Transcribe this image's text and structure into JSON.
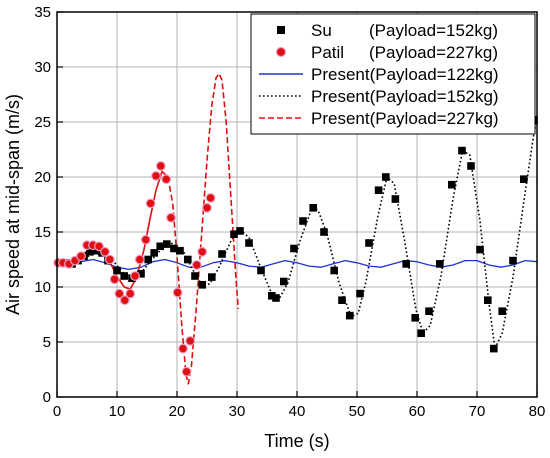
{
  "chart_data": {
    "type": "scatter",
    "xlabel": "Time (s)",
    "ylabel": "Air speed at mid-span (m/s)",
    "xlim": [
      0,
      80
    ],
    "ylim": [
      0,
      35
    ],
    "x_ticks": [
      0,
      10,
      20,
      30,
      40,
      50,
      60,
      70,
      80
    ],
    "y_ticks": [
      0,
      5,
      10,
      15,
      20,
      25,
      30,
      35
    ],
    "grid": true,
    "legend_position": "top-right",
    "legend": [
      {
        "label": "Su",
        "payload": "(Payload=152kg)",
        "style": "square-marker",
        "color": "#000000"
      },
      {
        "label": "Patil",
        "payload": "(Payload=227kg)",
        "style": "circle-marker",
        "color": "#dd1111"
      },
      {
        "label": "Present(Payload=122kg)",
        "payload": "",
        "style": "solid-line",
        "color": "#2233cc"
      },
      {
        "label": "Present(Payload=152kg)",
        "payload": "",
        "style": "dotted-line",
        "color": "#000000"
      },
      {
        "label": "Present(Payload=227kg)",
        "payload": "",
        "style": "dashed-line",
        "color": "#dd1111"
      }
    ],
    "series": [
      {
        "name": "Su",
        "kind": "markers",
        "marker": "square",
        "color": "#000000",
        "points": [
          [
            0.5,
            12.2
          ],
          [
            1.5,
            12.2
          ],
          [
            2.5,
            12.1
          ],
          [
            3.5,
            12.4
          ],
          [
            4.5,
            12.8
          ],
          [
            5.5,
            13.2
          ],
          [
            6.5,
            13.3
          ],
          [
            7.5,
            13.1
          ],
          [
            8.5,
            12.4
          ],
          [
            10.0,
            11.5
          ],
          [
            11.2,
            11.0
          ],
          [
            12.5,
            10.8
          ],
          [
            14.0,
            11.2
          ],
          [
            15.2,
            12.5
          ],
          [
            16.2,
            13.1
          ],
          [
            17.2,
            13.7
          ],
          [
            18.3,
            13.9
          ],
          [
            19.5,
            13.5
          ],
          [
            20.5,
            13.3
          ],
          [
            21.8,
            12.5
          ],
          [
            23.0,
            11.0
          ],
          [
            24.2,
            10.2
          ],
          [
            25.8,
            10.9
          ],
          [
            27.5,
            13.0
          ],
          [
            29.5,
            14.8
          ],
          [
            30.5,
            15.1
          ],
          [
            32.0,
            14.0
          ],
          [
            34.0,
            11.5
          ],
          [
            35.8,
            9.2
          ],
          [
            36.5,
            9.0
          ],
          [
            37.8,
            10.5
          ],
          [
            39.5,
            13.5
          ],
          [
            41.0,
            16.0
          ],
          [
            42.7,
            17.2
          ],
          [
            44.5,
            15.0
          ],
          [
            46.2,
            11.5
          ],
          [
            47.5,
            8.8
          ],
          [
            48.8,
            7.4
          ],
          [
            50.5,
            9.4
          ],
          [
            52.0,
            14.0
          ],
          [
            53.6,
            18.8
          ],
          [
            54.8,
            20.0
          ],
          [
            56.4,
            18.0
          ],
          [
            58.2,
            12.1
          ],
          [
            59.7,
            7.2
          ],
          [
            60.7,
            5.8
          ],
          [
            62.0,
            7.8
          ],
          [
            63.8,
            12.1
          ],
          [
            65.8,
            19.3
          ],
          [
            67.5,
            22.4
          ],
          [
            69.0,
            21.0
          ],
          [
            70.5,
            13.4
          ],
          [
            71.8,
            8.8
          ],
          [
            72.8,
            4.4
          ],
          [
            74.2,
            7.8
          ],
          [
            76.0,
            12.4
          ],
          [
            77.8,
            19.8
          ],
          [
            79.5,
            25.2
          ]
        ]
      },
      {
        "name": "Patil",
        "kind": "markers",
        "marker": "circle",
        "color": "#dd1111",
        "points": [
          [
            0.2,
            12.2
          ],
          [
            1.0,
            12.2
          ],
          [
            2.0,
            12.1
          ],
          [
            3.0,
            12.4
          ],
          [
            4.0,
            12.8
          ],
          [
            5.0,
            13.8
          ],
          [
            6.0,
            13.8
          ],
          [
            7.0,
            13.7
          ],
          [
            8.0,
            13.2
          ],
          [
            8.8,
            12.5
          ],
          [
            9.6,
            10.7
          ],
          [
            10.4,
            9.4
          ],
          [
            11.3,
            8.8
          ],
          [
            12.2,
            9.4
          ],
          [
            13.0,
            11.0
          ],
          [
            13.8,
            12.5
          ],
          [
            14.8,
            14.3
          ],
          [
            15.6,
            17.6
          ],
          [
            16.5,
            20.1
          ],
          [
            17.3,
            21.0
          ],
          [
            18.2,
            19.8
          ],
          [
            19.0,
            16.3
          ],
          [
            20.1,
            9.5
          ],
          [
            21.0,
            4.4
          ],
          [
            21.6,
            2.3
          ],
          [
            22.2,
            5.1
          ],
          [
            23.3,
            12.0
          ],
          [
            24.2,
            13.2
          ],
          [
            25.0,
            17.2
          ],
          [
            25.6,
            18.1
          ]
        ]
      },
      {
        "name": "Present(Payload=122kg)",
        "kind": "line",
        "style": "solid",
        "color": "#2233cc",
        "points": [
          [
            0,
            12.0
          ],
          [
            2,
            12.1
          ],
          [
            4,
            12.3
          ],
          [
            6,
            12.5
          ],
          [
            8,
            12.2
          ],
          [
            10,
            11.8
          ],
          [
            12,
            11.6
          ],
          [
            14,
            11.8
          ],
          [
            16,
            12.3
          ],
          [
            18,
            12.5
          ],
          [
            20,
            12.2
          ],
          [
            22,
            11.8
          ],
          [
            24,
            11.8
          ],
          [
            26,
            12.2
          ],
          [
            28,
            12.4
          ],
          [
            30,
            12.2
          ],
          [
            32,
            11.9
          ],
          [
            34,
            11.8
          ],
          [
            36,
            12.1
          ],
          [
            38,
            12.4
          ],
          [
            40,
            12.2
          ],
          [
            42,
            11.9
          ],
          [
            44,
            11.8
          ],
          [
            46,
            12.1
          ],
          [
            48,
            12.4
          ],
          [
            50,
            12.2
          ],
          [
            52,
            11.9
          ],
          [
            54,
            11.8
          ],
          [
            56,
            12.1
          ],
          [
            58,
            12.4
          ],
          [
            60,
            12.3
          ],
          [
            62,
            12.0
          ],
          [
            64,
            11.8
          ],
          [
            66,
            12.0
          ],
          [
            68,
            12.4
          ],
          [
            70,
            12.4
          ],
          [
            72,
            12.0
          ],
          [
            74,
            11.8
          ],
          [
            76,
            12.0
          ],
          [
            78,
            12.4
          ],
          [
            80,
            12.3
          ]
        ]
      },
      {
        "name": "Present(Payload=152kg)",
        "kind": "line",
        "style": "dotted",
        "color": "#000000",
        "points": [
          [
            0,
            12.0
          ],
          [
            3,
            12.2
          ],
          [
            6,
            13.0
          ],
          [
            7,
            13.2
          ],
          [
            9,
            12.6
          ],
          [
            11,
            11.3
          ],
          [
            12.5,
            10.9
          ],
          [
            14,
            11.3
          ],
          [
            16,
            12.6
          ],
          [
            18,
            13.8
          ],
          [
            19,
            14.0
          ],
          [
            21,
            13.3
          ],
          [
            23,
            11.2
          ],
          [
            24.3,
            10.1
          ],
          [
            25.5,
            10.3
          ],
          [
            27,
            11.8
          ],
          [
            29,
            14.2
          ],
          [
            30.5,
            15.2
          ],
          [
            32,
            14.5
          ],
          [
            34,
            11.7
          ],
          [
            36,
            9.1
          ],
          [
            37,
            8.9
          ],
          [
            38.5,
            10.4
          ],
          [
            40.5,
            14.2
          ],
          [
            42.5,
            17.2
          ],
          [
            43.5,
            17.0
          ],
          [
            45,
            14.8
          ],
          [
            47,
            10.4
          ],
          [
            49,
            7.3
          ],
          [
            50.2,
            7.6
          ],
          [
            51.5,
            10.5
          ],
          [
            53.5,
            16.5
          ],
          [
            55,
            20.0
          ],
          [
            56.2,
            19.4
          ],
          [
            58,
            14.0
          ],
          [
            59.8,
            8.0
          ],
          [
            61,
            5.8
          ],
          [
            62.2,
            6.5
          ],
          [
            64,
            11.0
          ],
          [
            66,
            18.0
          ],
          [
            67.6,
            22.4
          ],
          [
            68.8,
            22.0
          ],
          [
            70.5,
            16.0
          ],
          [
            72,
            8.5
          ],
          [
            73,
            4.4
          ],
          [
            74.2,
            5.8
          ],
          [
            76,
            10.9
          ],
          [
            78,
            18.5
          ],
          [
            79.5,
            24.0
          ],
          [
            80,
            25.3
          ]
        ]
      },
      {
        "name": "Present(Payload=227kg)",
        "kind": "line",
        "style": "mixed",
        "solid_until_x": 18.5,
        "color": "#dd1111",
        "points": [
          [
            0,
            12.0
          ],
          [
            2,
            12.2
          ],
          [
            4,
            12.9
          ],
          [
            5.5,
            13.4
          ],
          [
            7,
            13.3
          ],
          [
            8.5,
            12.6
          ],
          [
            10,
            11.0
          ],
          [
            11.2,
            10.0
          ],
          [
            12.2,
            9.8
          ],
          [
            13.2,
            10.8
          ],
          [
            14.5,
            13.4
          ],
          [
            15.5,
            16.2
          ],
          [
            16.5,
            18.8
          ],
          [
            17.5,
            20.5
          ],
          [
            18.5,
            20.0
          ],
          [
            19.3,
            17.5
          ],
          [
            20.0,
            12.8
          ],
          [
            20.8,
            6.5
          ],
          [
            21.5,
            2.0
          ],
          [
            21.9,
            1.2
          ],
          [
            22.4,
            2.8
          ],
          [
            23.2,
            8.0
          ],
          [
            24.2,
            15.5
          ],
          [
            25.0,
            21.5
          ],
          [
            25.8,
            26.5
          ],
          [
            26.5,
            29.0
          ],
          [
            27.0,
            29.4
          ],
          [
            27.5,
            28.8
          ],
          [
            28.2,
            25.0
          ],
          [
            29.0,
            18.0
          ],
          [
            29.8,
            11.0
          ],
          [
            30.2,
            8.0
          ]
        ]
      }
    ]
  }
}
